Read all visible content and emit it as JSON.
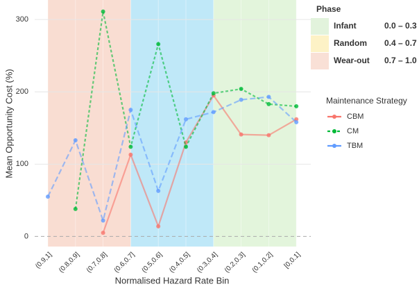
{
  "chart_data": {
    "type": "line",
    "x_label": "Normalised Hazard Rate Bin",
    "y_label": "Mean Opportunity Cost (%)",
    "categories": [
      "(0.9,1]",
      "(0.8,0.9]",
      "(0.7,0.8]",
      "(0.6,0.7]",
      "(0.5,0.6]",
      "(0.4,0.5]",
      "(0.3,0.4]",
      "(0.2,0.3]",
      "(0.1,0.2]",
      "[0,0.1]"
    ],
    "ylim": [
      -14,
      327
    ],
    "yticks": [
      0,
      100,
      200,
      300
    ],
    "grid": true,
    "legend_title": "Maintenance Strategy",
    "series": [
      {
        "name": "CBM",
        "color": "#f8766d",
        "dash": "solid",
        "values": [
          null,
          null,
          5,
          113,
          14,
          130,
          195,
          141,
          140,
          162
        ]
      },
      {
        "name": "CM",
        "color": "#00ba38",
        "dash": "dashed",
        "values": [
          null,
          38,
          311,
          124,
          266,
          124,
          198,
          204,
          183,
          180
        ]
      },
      {
        "name": "TBM",
        "color": "#619cff",
        "dash": "longdash",
        "values": [
          55,
          133,
          22,
          175,
          63,
          162,
          172,
          189,
          193,
          158
        ]
      }
    ],
    "phase_title": "Phase",
    "phases": [
      {
        "name": "Infant",
        "range": "0.0 – 0.3",
        "color": "#e2f3dc",
        "band_color": "#e3f5dc"
      },
      {
        "name": "Random",
        "range": "0.4 – 0.7",
        "color": "#fdf2c6",
        "band_color": "#bfe8f8"
      },
      {
        "name": "Wear-out",
        "range": "0.7 – 1.0",
        "color": "#f9e0d6",
        "band_color": "#f9ddd2"
      }
    ]
  }
}
